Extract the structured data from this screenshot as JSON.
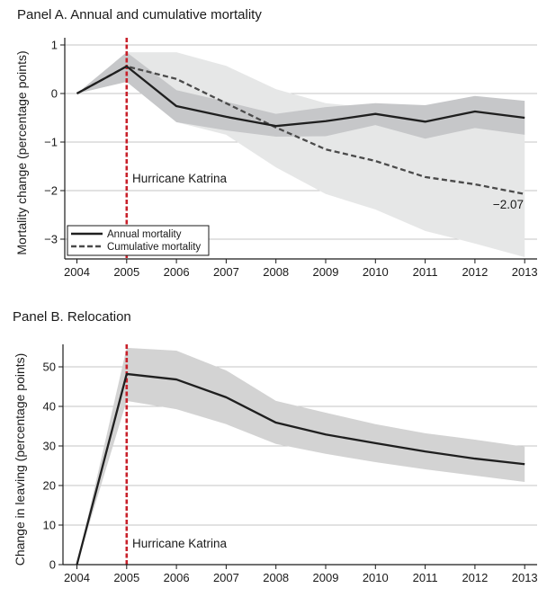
{
  "chart_data": [
    {
      "type": "line",
      "title": "Panel A. Annual and cumulative mortality",
      "xlabel": "",
      "ylabel": "Mortality change (percentage points)",
      "x": [
        2004,
        2005,
        2006,
        2007,
        2008,
        2009,
        2010,
        2011,
        2012,
        2013
      ],
      "xticks": [
        "2004",
        "2005",
        "2006",
        "2007",
        "2008",
        "2009",
        "2010",
        "2011",
        "2012",
        "2013"
      ],
      "ylim": [
        -3.35,
        1.1
      ],
      "yticks": [
        1,
        0,
        -1,
        -2,
        -3
      ],
      "ytick_labels": [
        "1",
        "0",
        "−1",
        "−2",
        "−3"
      ],
      "grid": true,
      "legend_position": "bottom-left",
      "series": [
        {
          "name": "Annual mortality",
          "style": "solid",
          "values": [
            0,
            0.56,
            -0.26,
            -0.48,
            -0.67,
            -0.57,
            -0.42,
            -0.58,
            -0.37,
            -0.5
          ],
          "ci_upper": [
            0,
            0.85,
            0.07,
            -0.17,
            -0.42,
            -0.28,
            -0.2,
            -0.24,
            -0.05,
            -0.15
          ],
          "ci_lower": [
            0,
            0.24,
            -0.59,
            -0.76,
            -0.89,
            -0.88,
            -0.65,
            -0.93,
            -0.71,
            -0.85
          ]
        },
        {
          "name": "Cumulative mortality",
          "style": "dashed",
          "values": [
            0,
            0.56,
            0.3,
            -0.2,
            -0.7,
            -1.15,
            -1.39,
            -1.72,
            -1.87,
            -2.07
          ],
          "ci_upper": [
            0,
            0.85,
            0.85,
            0.57,
            0.09,
            -0.2,
            -0.3,
            -0.4,
            -0.45,
            -0.5
          ],
          "ci_lower": [
            0,
            0.24,
            -0.59,
            -0.85,
            -1.52,
            -2.07,
            -2.39,
            -2.83,
            -3.09,
            -3.37
          ]
        }
      ],
      "annotations": [
        {
          "text": "Hurricane Katrina",
          "x": 2005,
          "type": "vertical-dashed-line",
          "color": "#c8202a"
        },
        {
          "text": "−2.07",
          "x": 2013,
          "y": -2.07
        }
      ]
    },
    {
      "type": "line",
      "title": "Panel B. Relocation",
      "xlabel": "",
      "ylabel": "Change in leaving (percentage points)",
      "x": [
        2004,
        2005,
        2006,
        2007,
        2008,
        2009,
        2010,
        2011,
        2012,
        2013
      ],
      "xticks": [
        "2004",
        "2005",
        "2006",
        "2007",
        "2008",
        "2009",
        "2010",
        "2011",
        "2012",
        "2013"
      ],
      "ylim": [
        0,
        56
      ],
      "yticks": [
        0,
        10,
        20,
        30,
        40,
        50
      ],
      "ytick_labels": [
        "0",
        "10",
        "20",
        "30",
        "40",
        "50"
      ],
      "grid": true,
      "series": [
        {
          "name": "Change in leaving",
          "style": "solid",
          "values": [
            0,
            48.2,
            46.8,
            42.3,
            35.9,
            32.9,
            30.7,
            28.6,
            26.8,
            25.4
          ],
          "ci_upper": [
            0,
            54.8,
            54.1,
            49.1,
            41.4,
            38.4,
            35.5,
            33.2,
            31.6,
            29.8
          ],
          "ci_lower": [
            0,
            41.4,
            39.3,
            35.5,
            30.5,
            28.0,
            25.9,
            24.1,
            22.5,
            20.9
          ]
        }
      ],
      "annotations": [
        {
          "text": "Hurricane Katrina",
          "x": 2005,
          "type": "vertical-dashed-line",
          "color": "#c8202a"
        }
      ]
    }
  ],
  "colors": {
    "line": "#1f1f1f",
    "dashed_line": "#4a4a4a",
    "dark_band": "#c6c7c9",
    "light_band": "#e6e7e7",
    "relocation_band": "#d3d3d3",
    "grid": "#c4c4c4",
    "katrina": "#c8202a"
  }
}
